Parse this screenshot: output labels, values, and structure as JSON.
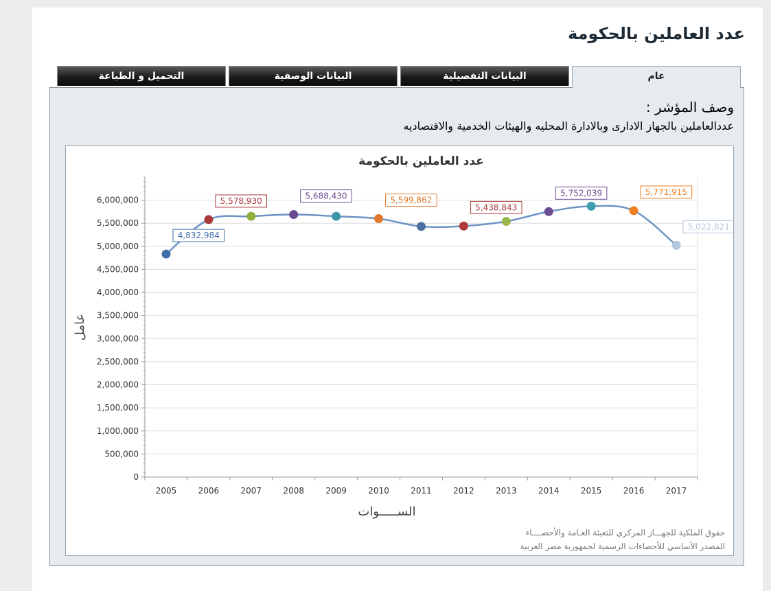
{
  "page_title": "عدد العاملين بالحكومة",
  "tabs": [
    {
      "label": "عام",
      "active": true
    },
    {
      "label": "البيانات التفصيلية",
      "active": false
    },
    {
      "label": "البيانات الوصفية",
      "active": false
    },
    {
      "label": "التحميل و الطباعة",
      "active": false
    }
  ],
  "indicator": {
    "label": "وصف المؤشر :",
    "text": "عددالعاملين بالجهاز الادارى وبالادارة المحليه والهيئات الخدمية والاقتصاديه"
  },
  "footer": {
    "line1": "حقوق الملكية للجهـــاز المركزي للتعبئة العـامة والأحصــــاء",
    "line2": "المصدر الأساسي للأحصاءات الرسمية لجمهورية مصر العربية"
  },
  "colors": {
    "line": "#6b93c3",
    "grid": "#dcdcdc",
    "axis": "#999999"
  },
  "chart_data": {
    "type": "line",
    "title": "عدد العاملين بالحكومة",
    "xlabel": "الســـــوات",
    "ylabel": "عامل",
    "categories": [
      "2005",
      "2006",
      "2007",
      "2008",
      "2009",
      "2010",
      "2011",
      "2012",
      "2013",
      "2014",
      "2015",
      "2016",
      "2017"
    ],
    "values": [
      4832984,
      5578930,
      5650000,
      5688430,
      5650000,
      5599862,
      5430000,
      5438843,
      5540000,
      5752039,
      5870000,
      5771915,
      5022821
    ],
    "labels": [
      "4,832,984",
      "5,578,930",
      "",
      "5,688,430",
      "",
      "5,599,862",
      "",
      "5,438,843",
      "",
      "5,752,039",
      "",
      "5,771,915",
      "5,022,821"
    ],
    "point_colors": [
      "#3f6eaa",
      "#a83a3a",
      "#8fae3e",
      "#6b4b8f",
      "#3b97a8",
      "#e0782a",
      "#4a6ea0",
      "#b03a3a",
      "#9ab54a",
      "#6e4e93",
      "#3f9eb0",
      "#ef7f22",
      "#b2c6de"
    ],
    "ylim": [
      0,
      6500000
    ],
    "yticks": [
      0,
      500000,
      1000000,
      1500000,
      2000000,
      2500000,
      3000000,
      3500000,
      4000000,
      4500000,
      5000000,
      5500000,
      6000000
    ],
    "ytick_labels": [
      "0",
      "500,000",
      "1,000,000",
      "1,500,000",
      "2,000,000",
      "2,500,000",
      "3,000,000",
      "3,500,000",
      "4,000,000",
      "4,500,000",
      "5,000,000",
      "5,500,000",
      "6,000,000"
    ],
    "grid": true,
    "legend": "none"
  }
}
